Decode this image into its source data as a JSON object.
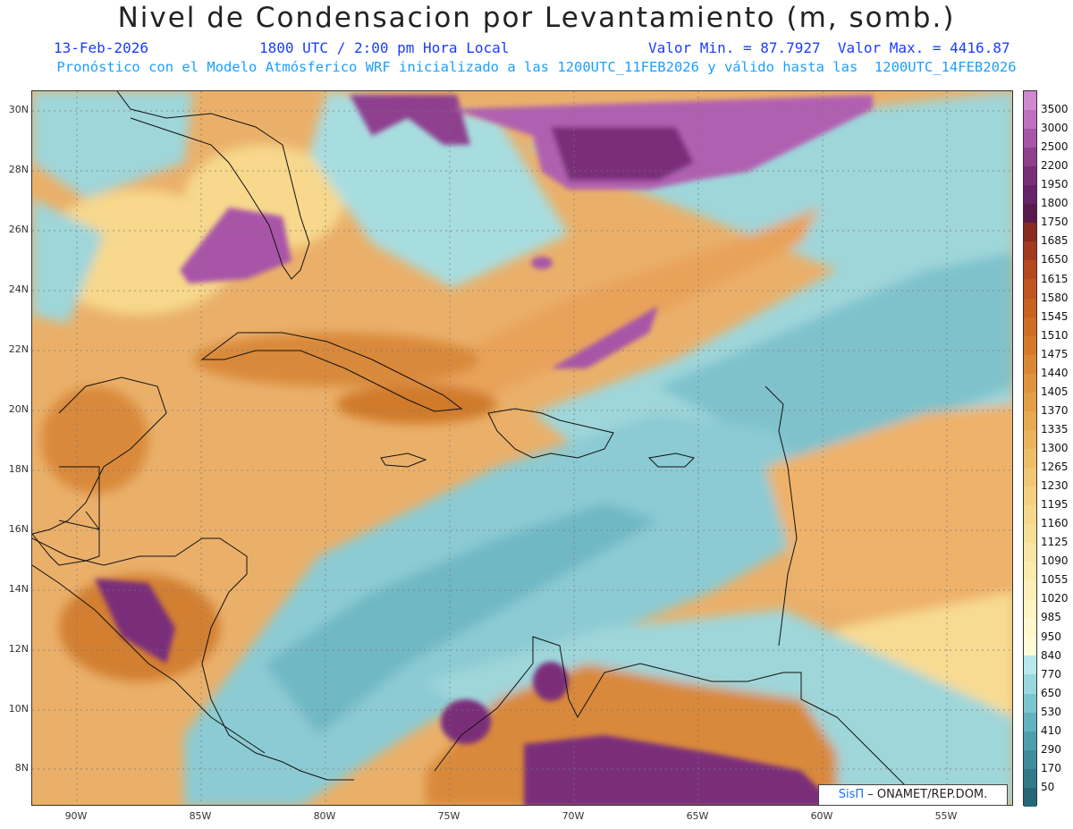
{
  "header": {
    "title": "Nivel de Condensacion por Levantamiento (m, somb.)",
    "date": "13-Feb-2026",
    "time": "1800 UTC / 2:00 pm Hora Local",
    "minmax": "Valor Min. = 87.7927  Valor Max. = 4416.87",
    "model_info": "Pronóstico con el Modelo Atmósferico WRF inicializado a las 1200UTC_11FEB2026 y válido hasta las  1200UTC_14FEB2026"
  },
  "map": {
    "lat_labels": [
      "30N",
      "28N",
      "26N",
      "24N",
      "22N",
      "20N",
      "18N",
      "16N",
      "14N",
      "12N",
      "10N",
      "8N"
    ],
    "lon_labels": [
      "90W",
      "85W",
      "80W",
      "75W",
      "70W",
      "65W",
      "60W",
      "55W"
    ],
    "credit_sis": "SisΠ",
    "credit_rest": " – ONAMET/REP.DOM."
  },
  "colorbar": {
    "labels": [
      "3500",
      "3000",
      "2500",
      "2200",
      "1950",
      "1800",
      "1750",
      "1685",
      "1650",
      "1615",
      "1580",
      "1545",
      "1510",
      "1475",
      "1440",
      "1405",
      "1370",
      "1335",
      "1300",
      "1265",
      "1230",
      "1195",
      "1160",
      "1125",
      "1090",
      "1055",
      "1020",
      "985",
      "950",
      "840",
      "770",
      "650",
      "530",
      "410",
      "290",
      "170",
      "50"
    ],
    "colors": [
      "#c070c0",
      "#a855a8",
      "#8e3f8e",
      "#7a2e7a",
      "#66236a",
      "#5a1a4e",
      "#8a2a20",
      "#a33a1e",
      "#b5481f",
      "#c0551f",
      "#c9611f",
      "#d06e24",
      "#d67a2a",
      "#db8732",
      "#e0933b",
      "#e49f45",
      "#e8aa50",
      "#ebb45b",
      "#eebe67",
      "#f1c773",
      "#f4d080",
      "#f6d88c",
      "#f8df98",
      "#f9e5a3",
      "#fbebad",
      "#fcf0b8",
      "#fdf4c2",
      "#fef8cc",
      "#fffbd6",
      "#b8e8ec",
      "#98d8de",
      "#7cc6d0",
      "#62b2c0",
      "#4e9fae",
      "#3f8c9c",
      "#327a8a",
      "#266878"
    ]
  }
}
